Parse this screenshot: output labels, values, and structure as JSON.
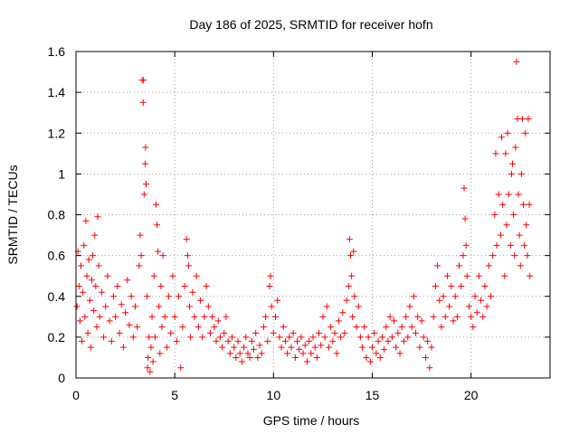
{
  "chart_data": {
    "type": "scatter",
    "title": "Day 186 of 2025, SRMTID for receiver hofn",
    "xlabel": "GPS time / hours",
    "ylabel": "SRMTID / TECUs",
    "xlim": [
      0,
      24
    ],
    "ylim": [
      0,
      1.6
    ],
    "xticks": [
      0,
      5,
      10,
      15,
      20
    ],
    "xtick_labels": [
      "0",
      "5",
      "10",
      "15",
      "20"
    ],
    "yticks": [
      0,
      0.2,
      0.4,
      0.6,
      0.8,
      1.0,
      1.2,
      1.4,
      1.6
    ],
    "ytick_labels": [
      "0",
      "0.2",
      "0.4",
      "0.6",
      "0.8",
      "1",
      "1.2",
      "1.4",
      "1.6"
    ],
    "grid": true,
    "marker": "+",
    "color": "#ff0000",
    "series": [
      {
        "name": "SRMTID",
        "points": [
          [
            0.05,
            0.35
          ],
          [
            0.1,
            0.62
          ],
          [
            0.15,
            0.45
          ],
          [
            0.2,
            0.28
          ],
          [
            0.25,
            0.55
          ],
          [
            0.3,
            0.18
          ],
          [
            0.35,
            0.42
          ],
          [
            0.4,
            0.65
          ],
          [
            0.45,
            0.3
          ],
          [
            0.5,
            0.77
          ],
          [
            0.55,
            0.5
          ],
          [
            0.6,
            0.22
          ],
          [
            0.65,
            0.58
          ],
          [
            0.7,
            0.38
          ],
          [
            0.75,
            0.15
          ],
          [
            0.8,
            0.48
          ],
          [
            0.85,
            0.6
          ],
          [
            0.9,
            0.33
          ],
          [
            0.95,
            0.7
          ],
          [
            1.0,
            0.45
          ],
          [
            1.05,
            0.25
          ],
          [
            1.1,
            0.79
          ],
          [
            1.15,
            0.55
          ],
          [
            1.2,
            0.3
          ],
          [
            1.3,
            0.42
          ],
          [
            1.4,
            0.2
          ],
          [
            1.5,
            0.35
          ],
          [
            1.6,
            0.5
          ],
          [
            1.7,
            0.28
          ],
          [
            1.8,
            0.18
          ],
          [
            1.9,
            0.4
          ],
          [
            2.0,
            0.3
          ],
          [
            2.1,
            0.45
          ],
          [
            2.2,
            0.22
          ],
          [
            2.3,
            0.36
          ],
          [
            2.4,
            0.15
          ],
          [
            2.5,
            0.32
          ],
          [
            2.6,
            0.48
          ],
          [
            2.7,
            0.26
          ],
          [
            2.8,
            0.4
          ],
          [
            2.9,
            0.2
          ],
          [
            3.0,
            0.35
          ],
          [
            3.1,
            0.25
          ],
          [
            3.2,
            0.55
          ],
          [
            3.25,
            0.7
          ],
          [
            3.3,
            0.6
          ],
          [
            3.35,
            1.46
          ],
          [
            3.4,
            1.35
          ],
          [
            3.42,
            1.46
          ],
          [
            3.45,
            0.9
          ],
          [
            3.5,
            1.05
          ],
          [
            3.52,
            1.13
          ],
          [
            3.55,
            0.95
          ],
          [
            3.6,
            0.4
          ],
          [
            3.62,
            0.05
          ],
          [
            3.65,
            0.1
          ],
          [
            3.7,
            0.2
          ],
          [
            3.75,
            0.03
          ],
          [
            3.8,
            0.15
          ],
          [
            3.85,
            0.3
          ],
          [
            3.9,
            0.08
          ],
          [
            3.95,
            0.5
          ],
          [
            4.0,
            0.2
          ],
          [
            4.05,
            0.85
          ],
          [
            4.1,
            0.75
          ],
          [
            4.15,
            0.62
          ],
          [
            4.2,
            0.35
          ],
          [
            4.25,
            0.12
          ],
          [
            4.3,
            0.45
          ],
          [
            4.35,
            0.25
          ],
          [
            4.4,
            0.6
          ],
          [
            4.5,
            0.3
          ],
          [
            4.6,
            0.15
          ],
          [
            4.7,
            0.4
          ],
          [
            4.8,
            0.22
          ],
          [
            4.9,
            0.5
          ],
          [
            5.0,
            0.3
          ],
          [
            5.1,
            0.18
          ],
          [
            5.2,
            0.4
          ],
          [
            5.3,
            0.05
          ],
          [
            5.4,
            0.25
          ],
          [
            5.5,
            0.45
          ],
          [
            5.6,
            0.68
          ],
          [
            5.65,
            0.6
          ],
          [
            5.7,
            0.55
          ],
          [
            5.75,
            0.35
          ],
          [
            5.8,
            0.2
          ],
          [
            5.9,
            0.42
          ],
          [
            6.0,
            0.3
          ],
          [
            6.1,
            0.5
          ],
          [
            6.2,
            0.25
          ],
          [
            6.3,
            0.38
          ],
          [
            6.4,
            0.2
          ],
          [
            6.5,
            0.3
          ],
          [
            6.6,
            0.45
          ],
          [
            6.7,
            0.35
          ],
          [
            6.8,
            0.22
          ],
          [
            6.9,
            0.3
          ],
          [
            7.0,
            0.25
          ],
          [
            7.1,
            0.18
          ],
          [
            7.2,
            0.28
          ],
          [
            7.3,
            0.2
          ],
          [
            7.4,
            0.15
          ],
          [
            7.5,
            0.22
          ],
          [
            7.6,
            0.3
          ],
          [
            7.7,
            0.18
          ],
          [
            7.8,
            0.12
          ],
          [
            7.9,
            0.2
          ],
          [
            8.0,
            0.15
          ],
          [
            8.1,
            0.1
          ],
          [
            8.2,
            0.18
          ],
          [
            8.3,
            0.12
          ],
          [
            8.4,
            0.08
          ],
          [
            8.5,
            0.15
          ],
          [
            8.6,
            0.2
          ],
          [
            8.7,
            0.12
          ],
          [
            8.8,
            0.1
          ],
          [
            8.9,
            0.18
          ],
          [
            9.0,
            0.14
          ],
          [
            9.1,
            0.22
          ],
          [
            9.2,
            0.1
          ],
          [
            9.3,
            0.16
          ],
          [
            9.4,
            0.12
          ],
          [
            9.5,
            0.25
          ],
          [
            9.6,
            0.3
          ],
          [
            9.7,
            0.18
          ],
          [
            9.8,
            0.45
          ],
          [
            9.85,
            0.5
          ],
          [
            9.9,
            0.35
          ],
          [
            10.0,
            0.22
          ],
          [
            10.1,
            0.3
          ],
          [
            10.2,
            0.38
          ],
          [
            10.3,
            0.2
          ],
          [
            10.4,
            0.15
          ],
          [
            10.5,
            0.25
          ],
          [
            10.6,
            0.18
          ],
          [
            10.7,
            0.12
          ],
          [
            10.8,
            0.2
          ],
          [
            10.9,
            0.15
          ],
          [
            11.0,
            0.22
          ],
          [
            11.1,
            0.1
          ],
          [
            11.2,
            0.18
          ],
          [
            11.3,
            0.14
          ],
          [
            11.4,
            0.2
          ],
          [
            11.5,
            0.12
          ],
          [
            11.6,
            0.16
          ],
          [
            11.7,
            0.08
          ],
          [
            11.8,
            0.18
          ],
          [
            11.9,
            0.12
          ],
          [
            12.0,
            0.2
          ],
          [
            12.1,
            0.15
          ],
          [
            12.2,
            0.1
          ],
          [
            12.3,
            0.22
          ],
          [
            12.4,
            0.16
          ],
          [
            12.5,
            0.3
          ],
          [
            12.6,
            0.2
          ],
          [
            12.7,
            0.35
          ],
          [
            12.8,
            0.15
          ],
          [
            12.9,
            0.25
          ],
          [
            13.0,
            0.18
          ],
          [
            13.1,
            0.22
          ],
          [
            13.2,
            0.12
          ],
          [
            13.3,
            0.28
          ],
          [
            13.4,
            0.2
          ],
          [
            13.5,
            0.32
          ],
          [
            13.6,
            0.22
          ],
          [
            13.7,
            0.38
          ],
          [
            13.8,
            0.45
          ],
          [
            13.85,
            0.68
          ],
          [
            13.9,
            0.6
          ],
          [
            13.95,
            0.5
          ],
          [
            14.0,
            0.3
          ],
          [
            14.05,
            0.62
          ],
          [
            14.1,
            0.4
          ],
          [
            14.2,
            0.25
          ],
          [
            14.3,
            0.35
          ],
          [
            14.4,
            0.2
          ],
          [
            14.5,
            0.15
          ],
          [
            14.6,
            0.25
          ],
          [
            14.7,
            0.1
          ],
          [
            14.8,
            0.2
          ],
          [
            14.9,
            0.08
          ],
          [
            15.0,
            0.15
          ],
          [
            15.1,
            0.22
          ],
          [
            15.2,
            0.12
          ],
          [
            15.3,
            0.18
          ],
          [
            15.4,
            0.1
          ],
          [
            15.5,
            0.2
          ],
          [
            15.6,
            0.14
          ],
          [
            15.7,
            0.25
          ],
          [
            15.8,
            0.18
          ],
          [
            15.9,
            0.3
          ],
          [
            16.0,
            0.2
          ],
          [
            16.1,
            0.28
          ],
          [
            16.2,
            0.15
          ],
          [
            16.3,
            0.22
          ],
          [
            16.4,
            0.12
          ],
          [
            16.5,
            0.25
          ],
          [
            16.6,
            0.18
          ],
          [
            16.7,
            0.3
          ],
          [
            16.8,
            0.2
          ],
          [
            16.9,
            0.35
          ],
          [
            17.0,
            0.25
          ],
          [
            17.1,
            0.4
          ],
          [
            17.2,
            0.22
          ],
          [
            17.3,
            0.3
          ],
          [
            17.4,
            0.15
          ],
          [
            17.5,
            0.28
          ],
          [
            17.6,
            0.2
          ],
          [
            17.7,
            0.1
          ],
          [
            17.8,
            0.18
          ],
          [
            17.9,
            0.05
          ],
          [
            18.0,
            0.15
          ],
          [
            18.1,
            0.3
          ],
          [
            18.2,
            0.45
          ],
          [
            18.3,
            0.55
          ],
          [
            18.4,
            0.38
          ],
          [
            18.5,
            0.25
          ],
          [
            18.6,
            0.4
          ],
          [
            18.7,
            0.3
          ],
          [
            18.8,
            0.5
          ],
          [
            18.9,
            0.35
          ],
          [
            19.0,
            0.45
          ],
          [
            19.1,
            0.28
          ],
          [
            19.2,
            0.4
          ],
          [
            19.3,
            0.3
          ],
          [
            19.4,
            0.55
          ],
          [
            19.5,
            0.45
          ],
          [
            19.6,
            0.6
          ],
          [
            19.65,
            0.93
          ],
          [
            19.7,
            0.78
          ],
          [
            19.75,
            0.65
          ],
          [
            19.8,
            0.5
          ],
          [
            19.9,
            0.35
          ],
          [
            20.0,
            0.3
          ],
          [
            20.1,
            0.25
          ],
          [
            20.2,
            0.4
          ],
          [
            20.3,
            0.32
          ],
          [
            20.4,
            0.5
          ],
          [
            20.5,
            0.38
          ],
          [
            20.6,
            0.3
          ],
          [
            20.7,
            0.45
          ],
          [
            20.8,
            0.35
          ],
          [
            20.9,
            0.55
          ],
          [
            21.0,
            0.4
          ],
          [
            21.1,
            0.6
          ],
          [
            21.2,
            0.8
          ],
          [
            21.25,
            1.1
          ],
          [
            21.3,
            0.65
          ],
          [
            21.4,
            0.9
          ],
          [
            21.5,
            0.7
          ],
          [
            21.55,
            1.18
          ],
          [
            21.6,
            0.85
          ],
          [
            21.7,
            0.5
          ],
          [
            21.75,
            1.1
          ],
          [
            21.8,
            0.75
          ],
          [
            21.85,
            1.2
          ],
          [
            21.9,
            0.9
          ],
          [
            22.0,
            0.65
          ],
          [
            22.05,
            1.0
          ],
          [
            22.1,
            1.05
          ],
          [
            22.15,
            0.8
          ],
          [
            22.2,
            0.6
          ],
          [
            22.25,
            1.13
          ],
          [
            22.3,
            1.55
          ],
          [
            22.35,
            1.27
          ],
          [
            22.4,
            0.9
          ],
          [
            22.45,
            0.7
          ],
          [
            22.5,
            0.55
          ],
          [
            22.55,
            1.0
          ],
          [
            22.6,
            1.27
          ],
          [
            22.65,
            0.85
          ],
          [
            22.7,
            0.65
          ],
          [
            22.75,
            1.2
          ],
          [
            22.8,
            0.75
          ],
          [
            22.85,
            0.6
          ],
          [
            22.9,
            1.27
          ],
          [
            22.95,
            0.85
          ],
          [
            22.98,
            0.5
          ]
        ]
      }
    ]
  }
}
